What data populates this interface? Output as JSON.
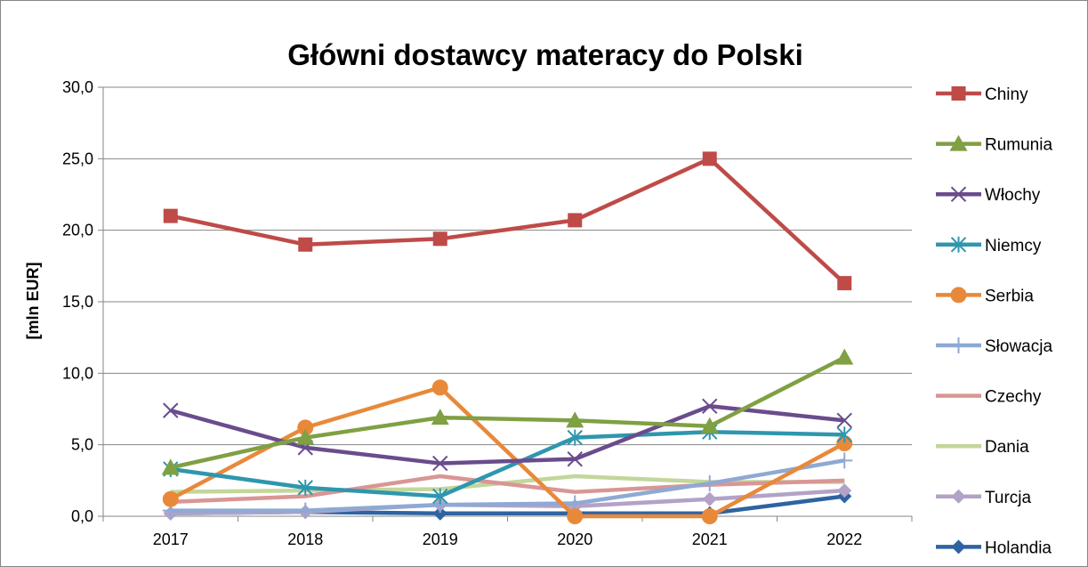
{
  "chart_data": {
    "type": "line",
    "title": "Główni dostawcy materacy do Polski",
    "xlabel": "",
    "ylabel": "[mln EUR]",
    "ylim": [
      0,
      30
    ],
    "y_ticks": [
      "0,0",
      "5,0",
      "10,0",
      "15,0",
      "20,0",
      "25,0",
      "30,0"
    ],
    "categories": [
      "2017",
      "2018",
      "2019",
      "2020",
      "2021",
      "2022"
    ],
    "grid": "horizontal",
    "legend_position": "right",
    "series": [
      {
        "name": "Chiny",
        "color": "#BE4B48",
        "marker": "square",
        "values": [
          21.0,
          19.0,
          19.4,
          20.7,
          25.0,
          16.3
        ]
      },
      {
        "name": "Rumunia",
        "color": "#7FA043",
        "marker": "triangle",
        "values": [
          3.4,
          5.5,
          6.9,
          6.7,
          6.3,
          11.1
        ]
      },
      {
        "name": "Włochy",
        "color": "#6A4C8C",
        "marker": "x",
        "values": [
          7.4,
          4.8,
          3.7,
          4.0,
          7.7,
          6.7
        ]
      },
      {
        "name": "Niemcy",
        "color": "#2F96AE",
        "marker": "star",
        "values": [
          3.3,
          2.0,
          1.4,
          5.5,
          5.9,
          5.7
        ]
      },
      {
        "name": "Serbia",
        "color": "#E8893A",
        "marker": "circle",
        "values": [
          1.2,
          6.2,
          9.0,
          0.0,
          0.0,
          5.1
        ]
      },
      {
        "name": "Słowacja",
        "color": "#8EA9D4",
        "marker": "plus",
        "values": [
          0.4,
          0.4,
          0.8,
          0.9,
          2.3,
          3.9
        ]
      },
      {
        "name": "Czechy",
        "color": "#D99694",
        "marker": "none",
        "values": [
          1.0,
          1.4,
          2.8,
          1.7,
          2.2,
          2.5
        ]
      },
      {
        "name": "Dania",
        "color": "#C3D69B",
        "marker": "none",
        "values": [
          1.7,
          1.8,
          1.9,
          2.8,
          2.4,
          2.4
        ]
      },
      {
        "name": "Turcja",
        "color": "#B3A2C7",
        "marker": "diamond",
        "values": [
          0.2,
          0.3,
          0.8,
          0.7,
          1.2,
          1.8
        ]
      },
      {
        "name": "Holandia",
        "color": "#2E63A1",
        "marker": "diamond",
        "values": [
          0.2,
          0.3,
          0.2,
          0.2,
          0.2,
          1.4
        ]
      }
    ]
  }
}
